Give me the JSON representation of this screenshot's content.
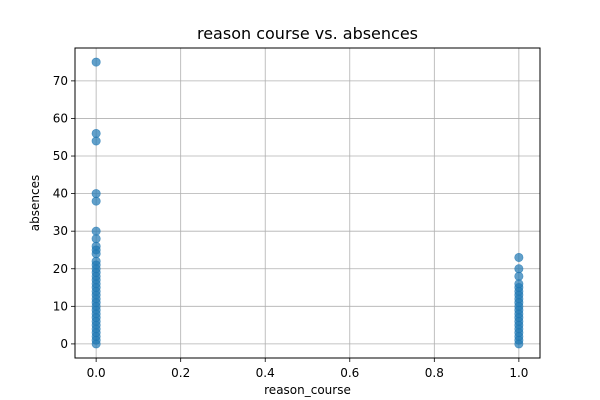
{
  "chart_data": {
    "type": "scatter",
    "title": "reason course vs. absences",
    "xlabel": "reason_course",
    "ylabel": "absences",
    "xlim": [
      -0.05,
      1.05
    ],
    "ylim": [
      -3.75,
      78.75
    ],
    "grid": true,
    "x_ticks": [
      0.0,
      0.2,
      0.4,
      0.6,
      0.8,
      1.0
    ],
    "x_tick_labels": [
      "0.0",
      "0.2",
      "0.4",
      "0.6",
      "0.8",
      "1.0"
    ],
    "y_ticks": [
      0,
      10,
      20,
      30,
      40,
      50,
      60,
      70
    ],
    "y_tick_labels": [
      "0",
      "10",
      "20",
      "30",
      "40",
      "50",
      "60",
      "70"
    ],
    "point_color": "#1f77b4",
    "point_alpha": 0.7,
    "series": [
      {
        "x": [
          0,
          0,
          0,
          0,
          0,
          0,
          0,
          0,
          0,
          0,
          0,
          0,
          0,
          0,
          0,
          0,
          0,
          0,
          0,
          0,
          0,
          0,
          0,
          0,
          0,
          0,
          0,
          0,
          0,
          0,
          0,
          0,
          0,
          1,
          1,
          1,
          1,
          1,
          1,
          1,
          1,
          1,
          1,
          1,
          1,
          1,
          1,
          1,
          1,
          1,
          1,
          1,
          1
        ],
        "y": [
          0,
          1,
          2,
          3,
          4,
          5,
          6,
          7,
          8,
          9,
          10,
          11,
          12,
          13,
          14,
          15,
          16,
          17,
          18,
          19,
          20,
          21,
          22,
          24,
          25,
          26,
          28,
          30,
          38,
          40,
          54,
          56,
          75,
          0,
          1,
          2,
          3,
          4,
          5,
          6,
          7,
          8,
          9,
          10,
          11,
          12,
          13,
          14,
          15,
          16,
          18,
          20,
          23
        ]
      }
    ]
  }
}
